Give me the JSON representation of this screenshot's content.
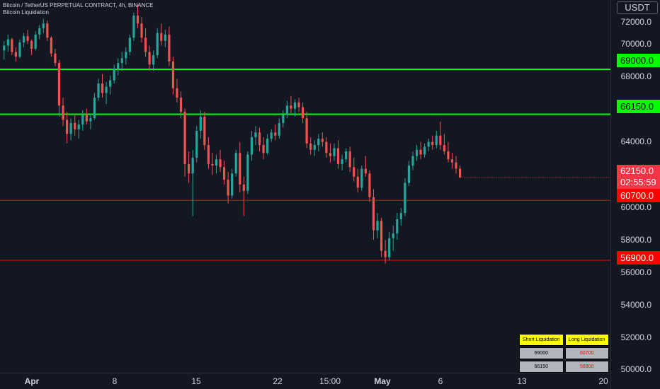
{
  "header": {
    "symbol_line": "Bitcoin / TetherUS PERPETUAL CONTRACT, 4h, BINANCE",
    "indicator_line": "Bitcoin Liquidation"
  },
  "price_axis": {
    "currency": "USDT",
    "ticks": [
      "72000.0",
      "70000.0",
      "68000.0",
      "64000.0",
      "60000.0",
      "58000.0",
      "56000.0",
      "54000.0",
      "52000.0",
      "50000.0"
    ],
    "labels": {
      "short1": "69000.0",
      "short2": "66150.0",
      "current_price": "62150.0",
      "countdown": "02:55:59",
      "long1": "60700.0",
      "long2": "56900.0"
    }
  },
  "time_axis": {
    "ticks": [
      {
        "label": "Apr",
        "bold": true
      },
      {
        "label": "8",
        "bold": false
      },
      {
        "label": "15",
        "bold": false
      },
      {
        "label": "22",
        "bold": false
      },
      {
        "label": "15:00",
        "bold": false
      },
      {
        "label": "May",
        "bold": true
      },
      {
        "label": "6",
        "bold": false
      },
      {
        "label": "13",
        "bold": false
      },
      {
        "label": "20",
        "bold": false
      }
    ]
  },
  "liquidation_table": {
    "short_header": "Short Liquidation",
    "long_header": "Long Liquidation",
    "rows": [
      {
        "short": "69000",
        "long": "60700"
      },
      {
        "short": "66150",
        "long": "56900"
      }
    ]
  },
  "levels": {
    "short": [
      69000,
      66150
    ],
    "long": [
      60700,
      56900
    ]
  },
  "colors": {
    "up": "#26a69a",
    "down": "#ef5350",
    "short_line": "#00ff00",
    "long_line": "#ff0000",
    "current": "#f23645"
  },
  "candles": [
    [
      70200,
      70800,
      69600,
      70500
    ],
    [
      70500,
      71200,
      70100,
      70900
    ],
    [
      70900,
      71000,
      69900,
      70100
    ],
    [
      70100,
      70400,
      69500,
      69800
    ],
    [
      69800,
      70900,
      69700,
      70700
    ],
    [
      70700,
      71300,
      70400,
      71100
    ],
    [
      71100,
      71500,
      70600,
      70800
    ],
    [
      70800,
      70900,
      69900,
      70300
    ],
    [
      70300,
      71400,
      70200,
      71200
    ],
    [
      71200,
      71800,
      70900,
      71600
    ],
    [
      71600,
      72200,
      71300,
      71900
    ],
    [
      71900,
      72100,
      70800,
      71000
    ],
    [
      71000,
      71100,
      69800,
      70000
    ],
    [
      70000,
      70300,
      69200,
      69400
    ],
    [
      69400,
      69600,
      66000,
      66700
    ],
    [
      66700,
      67200,
      65400,
      65800
    ],
    [
      65800,
      66300,
      64300,
      64900
    ],
    [
      64900,
      65900,
      64500,
      65600
    ],
    [
      65600,
      66200,
      64800,
      65200
    ],
    [
      65200,
      65800,
      64600,
      65500
    ],
    [
      65500,
      66400,
      65100,
      66100
    ],
    [
      66100,
      66500,
      65500,
      65700
    ],
    [
      65700,
      66200,
      65200,
      65900
    ],
    [
      65900,
      67500,
      65800,
      67200
    ],
    [
      67200,
      68400,
      67000,
      68100
    ],
    [
      68100,
      68700,
      67200,
      67500
    ],
    [
      67500,
      68200,
      66800,
      67900
    ],
    [
      67900,
      68600,
      67400,
      68300
    ],
    [
      68300,
      69300,
      68100,
      69000
    ],
    [
      69000,
      69700,
      68600,
      69400
    ],
    [
      69400,
      70100,
      68900,
      69700
    ],
    [
      69700,
      70400,
      69300,
      70100
    ],
    [
      70100,
      71200,
      69900,
      71000
    ],
    [
      71000,
      72600,
      70800,
      72400
    ],
    [
      72400,
      73100,
      71600,
      71900
    ],
    [
      71900,
      72300,
      70700,
      71000
    ],
    [
      71000,
      71600,
      69800,
      70100
    ],
    [
      70100,
      70500,
      68900,
      69300
    ],
    [
      69300,
      70200,
      68900,
      69900
    ],
    [
      69900,
      71600,
      69700,
      71300
    ],
    [
      71300,
      71900,
      70500,
      70800
    ],
    [
      70800,
      71500,
      70400,
      71200
    ],
    [
      71200,
      71700,
      69200,
      69500
    ],
    [
      69500,
      69800,
      67400,
      67800
    ],
    [
      67800,
      68400,
      66900,
      67200
    ],
    [
      67200,
      67600,
      65900,
      66300
    ],
    [
      66300,
      66500,
      62200,
      63000
    ],
    [
      63000,
      63800,
      61800,
      62400
    ],
    [
      62400,
      63900,
      59700,
      63400
    ],
    [
      63400,
      65400,
      63100,
      65100
    ],
    [
      65100,
      66400,
      64600,
      66000
    ],
    [
      66000,
      66300,
      63900,
      64200
    ],
    [
      64200,
      64700,
      62700,
      63000
    ],
    [
      63000,
      63700,
      62300,
      62900
    ],
    [
      62900,
      63600,
      62400,
      63300
    ],
    [
      63300,
      63900,
      62500,
      62800
    ],
    [
      62800,
      63200,
      61700,
      62000
    ],
    [
      62000,
      62500,
      60500,
      61000
    ],
    [
      61000,
      62700,
      60800,
      62400
    ],
    [
      62400,
      63900,
      62200,
      63700
    ],
    [
      63700,
      64400,
      61200,
      61700
    ],
    [
      61700,
      62200,
      59700,
      61300
    ],
    [
      61300,
      63800,
      61100,
      63600
    ],
    [
      63600,
      65100,
      63200,
      64700
    ],
    [
      64700,
      65400,
      64200,
      65000
    ],
    [
      65000,
      65300,
      63800,
      64200
    ],
    [
      64200,
      64700,
      63300,
      63700
    ],
    [
      63700,
      64900,
      63600,
      64600
    ],
    [
      64600,
      65200,
      64400,
      65000
    ],
    [
      65000,
      65500,
      64500,
      64800
    ],
    [
      64800,
      65900,
      64600,
      65600
    ],
    [
      65600,
      66400,
      65300,
      66100
    ],
    [
      66100,
      67000,
      65900,
      66700
    ],
    [
      66700,
      67300,
      66200,
      66500
    ],
    [
      66500,
      67100,
      66000,
      66900
    ],
    [
      66900,
      67200,
      66300,
      66600
    ],
    [
      66600,
      66900,
      65600,
      65900
    ],
    [
      65900,
      66300,
      64000,
      64300
    ],
    [
      64300,
      64700,
      63600,
      63900
    ],
    [
      63900,
      64500,
      63500,
      64200
    ],
    [
      64200,
      64900,
      63800,
      64600
    ],
    [
      64600,
      65000,
      64100,
      64400
    ],
    [
      64400,
      64700,
      63400,
      63700
    ],
    [
      63700,
      64300,
      63100,
      63500
    ],
    [
      63500,
      64300,
      63200,
      64000
    ],
    [
      64000,
      64500,
      62700,
      63000
    ],
    [
      63000,
      63600,
      62600,
      63300
    ],
    [
      63300,
      64000,
      63100,
      63800
    ],
    [
      63800,
      64100,
      62500,
      62800
    ],
    [
      62800,
      63400,
      61900,
      62200
    ],
    [
      62200,
      62700,
      61200,
      61500
    ],
    [
      61500,
      62900,
      61300,
      62700
    ],
    [
      62700,
      63500,
      62200,
      62400
    ],
    [
      62400,
      62600,
      60600,
      60900
    ],
    [
      60900,
      61400,
      58200,
      58800
    ],
    [
      58800,
      59900,
      58300,
      59400
    ],
    [
      59400,
      59600,
      57100,
      57500
    ],
    [
      57500,
      58200,
      56700,
      57100
    ],
    [
      57100,
      58700,
      56900,
      58300
    ],
    [
      58300,
      59100,
      57500,
      58600
    ],
    [
      58600,
      59900,
      58200,
      59500
    ],
    [
      59500,
      60200,
      59100,
      59900
    ],
    [
      59900,
      62100,
      59700,
      61800
    ],
    [
      61800,
      63200,
      61600,
      62900
    ],
    [
      62900,
      63800,
      62600,
      63500
    ],
    [
      63500,
      64200,
      63200,
      63900
    ],
    [
      63900,
      64400,
      63300,
      63600
    ],
    [
      63600,
      64300,
      63400,
      64100
    ],
    [
      64100,
      64600,
      63800,
      64400
    ],
    [
      64400,
      64800,
      63900,
      64200
    ],
    [
      64200,
      65100,
      64000,
      64800
    ],
    [
      64800,
      65700,
      63900,
      64200
    ],
    [
      64200,
      64900,
      63600,
      63800
    ],
    [
      63800,
      64400,
      63100,
      63300
    ],
    [
      63300,
      63700,
      62700,
      63100
    ],
    [
      63100,
      63500,
      62400,
      62700
    ],
    [
      62700,
      62900,
      62100,
      62150
    ]
  ]
}
